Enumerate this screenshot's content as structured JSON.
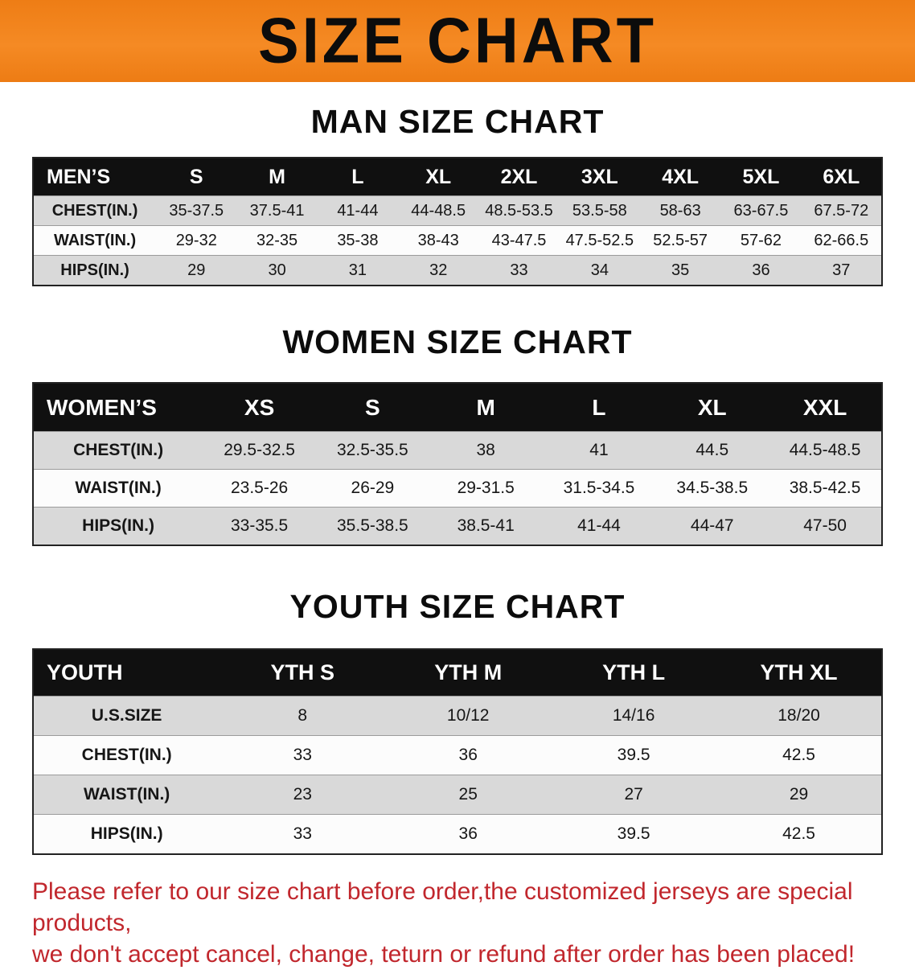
{
  "banner": {
    "title": "SIZE CHART"
  },
  "colors": {
    "banner_orange": "#F0801C",
    "table_header_black": "#101010",
    "row_gray": "#D9D9D9",
    "footer_red": "#C1272D"
  },
  "sections": [
    {
      "heading": "MAN SIZE CHART",
      "table": {
        "header": [
          "MEN’S",
          "S",
          "M",
          "L",
          "XL",
          "2XL",
          "3XL",
          "4XL",
          "5XL",
          "6XL"
        ],
        "rows": [
          [
            "CHEST(IN.)",
            "35-37.5",
            "37.5-41",
            "41-44",
            "44-48.5",
            "48.5-53.5",
            "53.5-58",
            "58-63",
            "63-67.5",
            "67.5-72"
          ],
          [
            "WAIST(IN.)",
            "29-32",
            "32-35",
            "35-38",
            "38-43",
            "43-47.5",
            "47.5-52.5",
            "52.5-57",
            "57-62",
            "62-66.5"
          ],
          [
            "HIPS(IN.)",
            "29",
            "30",
            "31",
            "32",
            "33",
            "34",
            "35",
            "36",
            "37"
          ]
        ]
      }
    },
    {
      "heading": "WOMEN SIZE CHART",
      "table": {
        "header": [
          "WOMEN’S",
          "XS",
          "S",
          "M",
          "L",
          "XL",
          "XXL"
        ],
        "rows": [
          [
            "CHEST(IN.)",
            "29.5-32.5",
            "32.5-35.5",
            "38",
            "41",
            "44.5",
            "44.5-48.5"
          ],
          [
            "WAIST(IN.)",
            "23.5-26",
            "26-29",
            "29-31.5",
            "31.5-34.5",
            "34.5-38.5",
            "38.5-42.5"
          ],
          [
            "HIPS(IN.)",
            "33-35.5",
            "35.5-38.5",
            "38.5-41",
            "41-44",
            "44-47",
            "47-50"
          ]
        ]
      }
    },
    {
      "heading": "YOUTH SIZE CHART",
      "table": {
        "header": [
          "YOUTH",
          "YTH S",
          "YTH M",
          "YTH L",
          "YTH XL"
        ],
        "rows": [
          [
            "U.S.SIZE",
            "8",
            "10/12",
            "14/16",
            "18/20"
          ],
          [
            "CHEST(IN.)",
            "33",
            "36",
            "39.5",
            "42.5"
          ],
          [
            "WAIST(IN.)",
            "23",
            "25",
            "27",
            "29"
          ],
          [
            "HIPS(IN.)",
            "33",
            "36",
            "39.5",
            "42.5"
          ]
        ]
      }
    }
  ],
  "footer": {
    "line1": "Please refer to our size chart before order,the customized jerseys are special products,",
    "line2": "we don't accept cancel, change, teturn or refund after order has been placed!"
  }
}
